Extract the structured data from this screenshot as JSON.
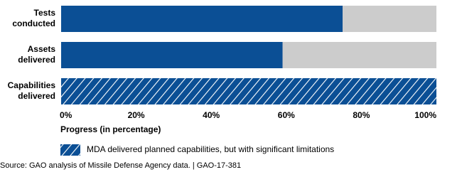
{
  "chart_data": {
    "type": "hbar",
    "categories": [
      [
        "Tests",
        "conducted"
      ],
      [
        "Assets",
        "delivered"
      ],
      [
        "Capabilities",
        "delivered"
      ]
    ],
    "series": [
      {
        "color": "#0b4f95",
        "values": [
          75,
          59,
          null
        ]
      },
      {
        "name": "MDA delivered planned capabilities, but with significant limitations",
        "color": "#0b4f95",
        "pattern": "hatch",
        "values": [
          null,
          null,
          100
        ]
      }
    ],
    "track_color": "#cccccc",
    "xlim": [
      0,
      100
    ],
    "xticks": [
      {
        "value": 0,
        "label": "0%"
      },
      {
        "value": 20,
        "label": "20%"
      },
      {
        "value": 40,
        "label": "40%"
      },
      {
        "value": 60,
        "label": "60%"
      },
      {
        "value": 80,
        "label": "80%"
      },
      {
        "value": 100,
        "label": "100%"
      }
    ],
    "xlabel": "Progress (in percentage)",
    "source": "Source: GAO analysis of Missile Defense Agency data. | GAO-17-381"
  }
}
